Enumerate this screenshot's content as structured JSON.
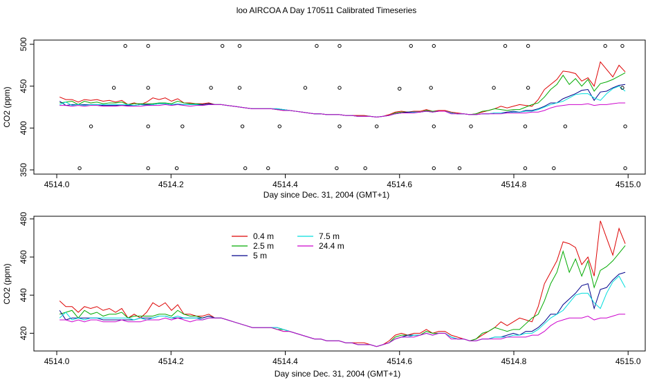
{
  "figure_title": "loo AIRCOA A  Day 170511  Calibrated Timeseries",
  "colors": {
    "axis": "#000000",
    "s0.4": "#dd0000",
    "s2.5": "#00aa00",
    "s5": "#00008b",
    "s7.5": "#00dddd",
    "s24.4": "#cc00cc"
  },
  "chart_data": [
    {
      "type": "scatter+line",
      "title": "",
      "xlabel": "Day since Dec. 31, 2004 (GMT+1)",
      "ylabel": "CO2 (ppm)",
      "xlim": [
        4513.96,
        4515.03
      ],
      "ylim": [
        345,
        505
      ],
      "xticks": [
        "4514.0",
        "4514.2",
        "4514.4",
        "4514.6",
        "4514.8",
        "4515.0"
      ],
      "yticks": [
        "350",
        "400",
        "450",
        "500"
      ],
      "points": {
        "x": [
          4514.04,
          4514.06,
          4514.1,
          4514.12,
          4514.16,
          4514.16,
          4514.16,
          4514.16,
          4514.21,
          4514.22,
          4514.27,
          4514.29,
          4514.32,
          4514.32,
          4514.325,
          4514.33,
          4514.37,
          4514.39,
          4514.435,
          4514.455,
          4514.49,
          4514.495,
          4514.495,
          4514.495,
          4514.54,
          4514.56,
          4514.6,
          4514.62,
          4514.655,
          4514.66,
          4514.66,
          4514.66,
          4514.705,
          4514.725,
          4514.765,
          4514.785,
          4514.82,
          4514.82,
          4514.825,
          4514.825,
          4514.87,
          4514.89,
          4514.96,
          4514.99,
          4514.99,
          4514.995,
          4514.995
        ],
        "y": [
          352,
          402,
          448,
          498,
          352,
          402,
          448,
          498,
          352,
          402,
          448,
          498,
          498,
          448,
          402,
          352,
          352,
          402,
          448,
          498,
          352,
          402,
          448,
          498,
          352,
          402,
          447,
          498,
          448,
          498,
          402,
          352,
          352,
          402,
          448,
          498,
          352,
          402,
          448,
          498,
          352,
          402,
          498,
          448,
          498,
          402,
          352
        ]
      },
      "series": [
        {
          "name": "0.4 m",
          "values": [
            437,
            434,
            434,
            431,
            434,
            433,
            434,
            432,
            433,
            431,
            433,
            428,
            430,
            428,
            431,
            436,
            434,
            436,
            432,
            435,
            430,
            430,
            429,
            429,
            430,
            428,
            428,
            427,
            426,
            425,
            424,
            423,
            423,
            423,
            423,
            422,
            421,
            421,
            420,
            419,
            418,
            417,
            417,
            416,
            416,
            416,
            415,
            415,
            415,
            415,
            414,
            413,
            414,
            416,
            419,
            420,
            419,
            420,
            420,
            422,
            420,
            421,
            421,
            419,
            418,
            417,
            416,
            417,
            419,
            421,
            423,
            426,
            424,
            426,
            428,
            427,
            426,
            434,
            446,
            452,
            458,
            468,
            467,
            465,
            456,
            460,
            450,
            479,
            470,
            461,
            475,
            467
          ]
        },
        {
          "name": "2.5 m",
          "values": [
            430,
            431,
            432,
            428,
            432,
            430,
            431,
            429,
            430,
            430,
            431,
            428,
            429,
            429,
            429,
            429,
            430,
            430,
            429,
            432,
            430,
            429,
            429,
            428,
            429,
            428,
            428,
            427,
            426,
            425,
            424,
            423,
            423,
            423,
            423,
            422,
            422,
            421,
            420,
            419,
            418,
            417,
            417,
            416,
            416,
            416,
            415,
            415,
            414,
            414,
            414,
            413,
            414,
            415,
            418,
            419,
            419,
            419,
            419,
            421,
            420,
            420,
            420,
            418,
            417,
            417,
            416,
            417,
            420,
            421,
            423,
            422,
            421,
            422,
            422,
            425,
            428,
            430,
            437,
            446,
            452,
            463,
            452,
            459,
            450,
            458,
            444,
            453,
            455,
            458,
            462,
            466
          ]
        },
        {
          "name": "5 m",
          "values": [
            432,
            427,
            428,
            428,
            428,
            428,
            428,
            427,
            427,
            427,
            427,
            427,
            427,
            428,
            428,
            428,
            429,
            429,
            428,
            428,
            428,
            428,
            428,
            428,
            429,
            428,
            428,
            427,
            426,
            425,
            424,
            423,
            423,
            423,
            423,
            423,
            422,
            421,
            420,
            419,
            418,
            417,
            417,
            416,
            416,
            416,
            415,
            415,
            414,
            414,
            414,
            413,
            414,
            415,
            417,
            418,
            419,
            419,
            419,
            420,
            419,
            420,
            420,
            418,
            417,
            417,
            416,
            416,
            417,
            417,
            418,
            418,
            419,
            420,
            419,
            421,
            421,
            423,
            426,
            430,
            430,
            435,
            438,
            441,
            445,
            446,
            433,
            443,
            444,
            448,
            451,
            452
          ]
        },
        {
          "name": "7.5 m",
          "values": [
            428,
            431,
            427,
            428,
            427,
            428,
            428,
            428,
            428,
            428,
            428,
            428,
            427,
            428,
            427,
            428,
            429,
            429,
            428,
            429,
            428,
            428,
            428,
            427,
            428,
            428,
            428,
            427,
            426,
            425,
            424,
            423,
            423,
            423,
            423,
            423,
            422,
            421,
            420,
            419,
            418,
            417,
            417,
            416,
            416,
            416,
            415,
            415,
            414,
            414,
            414,
            413,
            414,
            415,
            417,
            418,
            418,
            419,
            419,
            420,
            419,
            420,
            420,
            418,
            417,
            417,
            416,
            416,
            417,
            417,
            418,
            418,
            418,
            419,
            419,
            420,
            420,
            422,
            425,
            428,
            430,
            432,
            436,
            440,
            441,
            441,
            436,
            433,
            441,
            447,
            450,
            444
          ]
        },
        {
          "name": "24.4 m",
          "values": [
            427,
            427,
            426,
            427,
            426,
            427,
            427,
            426,
            426,
            426,
            427,
            426,
            426,
            426,
            427,
            427,
            427,
            428,
            427,
            428,
            427,
            426,
            427,
            427,
            428,
            428,
            428,
            427,
            426,
            425,
            424,
            423,
            423,
            423,
            423,
            422,
            421,
            421,
            420,
            419,
            418,
            417,
            417,
            416,
            416,
            416,
            415,
            415,
            414,
            414,
            414,
            413,
            414,
            415,
            417,
            418,
            418,
            418,
            419,
            420,
            419,
            420,
            420,
            417,
            417,
            417,
            416,
            416,
            417,
            417,
            417,
            417,
            418,
            418,
            418,
            418,
            419,
            419,
            421,
            424,
            426,
            427,
            428,
            428,
            428,
            429,
            427,
            428,
            428,
            429,
            430,
            430
          ]
        }
      ]
    },
    {
      "type": "line",
      "title": "",
      "xlabel": "Day since Dec. 31, 2004 (GMT+1)",
      "ylabel": "CO2 (ppm)",
      "xlim": [
        4513.96,
        4515.03
      ],
      "ylim": [
        410.7,
        481.4
      ],
      "xticks": [
        "4514.0",
        "4514.2",
        "4514.4",
        "4514.6",
        "4514.8",
        "4515.0"
      ],
      "yticks": [
        "420",
        "440",
        "460",
        "480"
      ],
      "legend": {
        "placement": "top-center",
        "entries": [
          "0.4 m",
          "2.5 m",
          "5 m",
          "7.5 m",
          "24.4 m"
        ]
      },
      "x_start": 4514.005,
      "x_step": 0.010879,
      "series_ref": "same series as first panel"
    }
  ]
}
